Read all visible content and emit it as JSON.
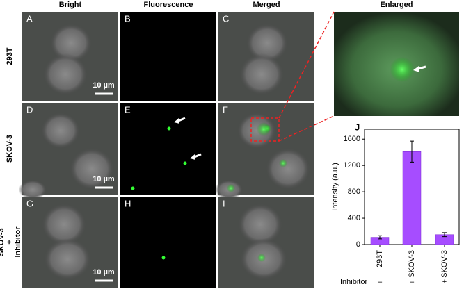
{
  "columns": [
    "Bright",
    "Fluorescence",
    "Merged",
    "Enlarged"
  ],
  "rows": [
    [
      "293T"
    ],
    [
      "SKOV-3"
    ],
    [
      "SKOV-3",
      "+",
      "Inhibitor"
    ]
  ],
  "panel_labels": [
    "A",
    "B",
    "C",
    "D",
    "E",
    "F",
    "G",
    "H",
    "I"
  ],
  "scale_bar": "10 µm",
  "chart_data": {
    "type": "bar",
    "label": "J",
    "categories": [
      "293T",
      "SKOV-3",
      "SKOV-3"
    ],
    "values": [
      110,
      1410,
      150
    ],
    "errors": [
      25,
      160,
      30
    ],
    "color": "#a64dff",
    "ylabel": "Intensity (a.u.)",
    "ylim": [
      0,
      1750
    ],
    "yticks": [
      0,
      400,
      800,
      1200,
      1600
    ],
    "row_label": "Inhibitor",
    "row_marks": [
      "–",
      "–",
      "+"
    ]
  }
}
